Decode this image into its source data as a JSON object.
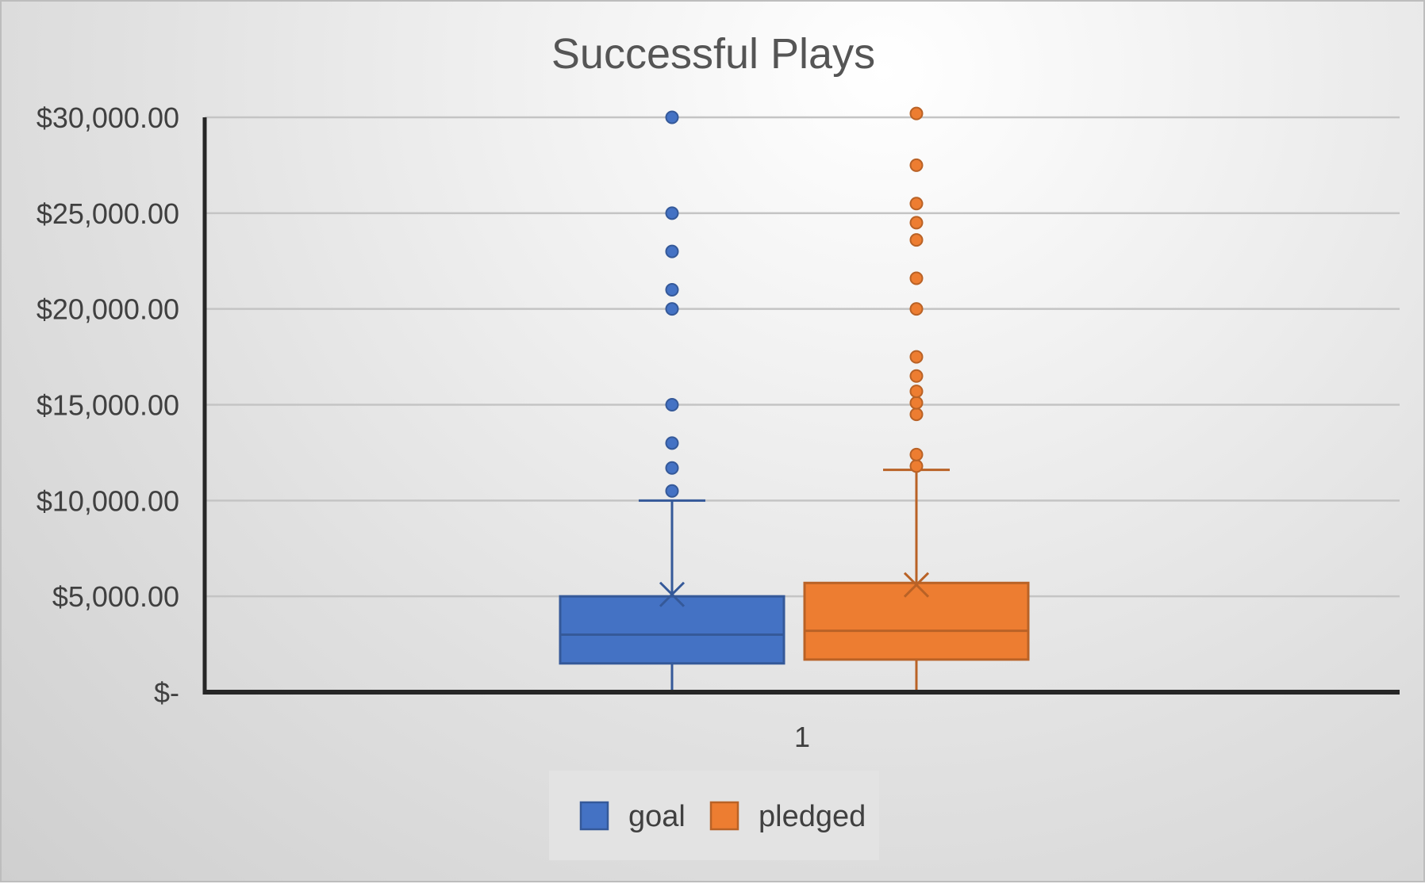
{
  "chart_data": {
    "type": "box",
    "title": "Successful Plays",
    "categories": [
      "1"
    ],
    "y_ticks": [
      "$-",
      "$5,000.00",
      "$10,000.00",
      "$15,000.00",
      "$20,000.00",
      "$25,000.00",
      "$30,000.00"
    ],
    "ylim": [
      0,
      30000
    ],
    "grid": true,
    "legend_position": "bottom",
    "series": [
      {
        "name": "goal",
        "color": "#4472C4",
        "min": 0,
        "q1": 1500,
        "median": 3000,
        "q3": 5000,
        "whisker_high": 10000,
        "mean": 5100,
        "outliers": [
          10500,
          11700,
          13000,
          15000,
          20000,
          21000,
          23000,
          25000,
          30000
        ]
      },
      {
        "name": "pledged",
        "color": "#ED7D31",
        "min": 0,
        "q1": 1700,
        "median": 3200,
        "q3": 5700,
        "whisker_high": 11600,
        "mean": 5600,
        "outliers": [
          11800,
          12400,
          14500,
          15100,
          15700,
          16500,
          17500,
          20000,
          21600,
          23600,
          24500,
          25500,
          27500,
          30200
        ]
      }
    ]
  }
}
